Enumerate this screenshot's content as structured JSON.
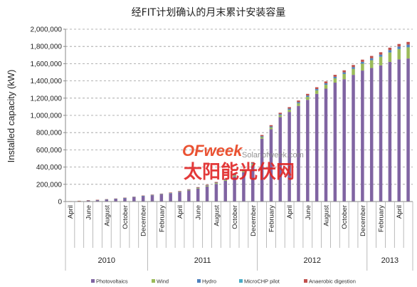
{
  "chart_data": {
    "type": "bar",
    "stacked": true,
    "title": "经FIT计划确认的月末累计安装容量",
    "ylabel": "Installed capacity (kW)",
    "xlabel": "",
    "ylim": [
      0,
      2000000
    ],
    "yticks": [
      0,
      200000,
      400000,
      600000,
      800000,
      1000000,
      1200000,
      1400000,
      1600000,
      1800000,
      2000000
    ],
    "ytick_labels": [
      "0",
      "200,000",
      "400,000",
      "600,000",
      "800,000",
      "1,000,000",
      "1,200,000",
      "1,400,000",
      "1,600,000",
      "1,800,000",
      "2,000,000"
    ],
    "grid": "horizontal-dashed",
    "legend_position": "bottom",
    "categories": [
      "Apr 2010",
      "May 2010",
      "Jun 2010",
      "Jul 2010",
      "Aug 2010",
      "Sep 2010",
      "Oct 2010",
      "Nov 2010",
      "Dec 2010",
      "Jan 2011",
      "Feb 2011",
      "Mar 2011",
      "Apr 2011",
      "May 2011",
      "Jun 2011",
      "Jul 2011",
      "Aug 2011",
      "Sep 2011",
      "Oct 2011",
      "Nov 2011",
      "Dec 2011",
      "Jan 2012",
      "Feb 2012",
      "Mar 2012",
      "Apr 2012",
      "May 2012",
      "Jun 2012",
      "Jul 2012",
      "Aug 2012",
      "Sep 2012",
      "Oct 2012",
      "Nov 2012",
      "Dec 2012",
      "Jan 2013",
      "Feb 2013",
      "Mar 2013",
      "Apr 2013",
      "May 2013"
    ],
    "month_labels": [
      "April",
      "",
      "June",
      "",
      "August",
      "",
      "October",
      "",
      "December",
      "",
      "February",
      "",
      "April",
      "",
      "June",
      "",
      "August",
      "",
      "October",
      "",
      "December",
      "",
      "February",
      "",
      "April",
      "",
      "June",
      "",
      "August",
      "",
      "October",
      "",
      "December",
      "",
      "February",
      "",
      "April",
      ""
    ],
    "years": [
      {
        "label": "2010",
        "start": 0,
        "count": 9
      },
      {
        "label": "2011",
        "start": 9,
        "count": 12
      },
      {
        "label": "2012",
        "start": 21,
        "count": 12
      },
      {
        "label": "2013",
        "start": 33,
        "count": 5
      }
    ],
    "series": [
      {
        "name": "Photovoltaics",
        "color": "#8064a2",
        "values": [
          4000,
          8000,
          13000,
          18000,
          24000,
          31000,
          40000,
          50000,
          62000,
          72000,
          82000,
          94000,
          110000,
          128000,
          150000,
          175000,
          205000,
          240000,
          290000,
          340000,
          420000,
          730000,
          840000,
          980000,
          1040000,
          1110000,
          1180000,
          1250000,
          1310000,
          1380000,
          1420000,
          1470000,
          1520000,
          1550000,
          1580000,
          1620000,
          1650000,
          1660000
        ]
      },
      {
        "name": "Wind",
        "color": "#9bbb59",
        "values": [
          100,
          200,
          500,
          800,
          1200,
          1600,
          2000,
          2500,
          3000,
          3500,
          4000,
          4500,
          5000,
          6000,
          7000,
          8000,
          9000,
          10000,
          12000,
          14000,
          16000,
          18000,
          20000,
          22000,
          25000,
          30000,
          35000,
          40000,
          45000,
          50000,
          60000,
          70000,
          80000,
          90000,
          100000,
          110000,
          120000,
          130000
        ]
      },
      {
        "name": "Hydro",
        "color": "#4f81bd",
        "values": [
          0,
          0,
          100,
          200,
          300,
          400,
          500,
          600,
          800,
          1000,
          1200,
          1500,
          2000,
          2500,
          3000,
          3500,
          4000,
          5000,
          6000,
          7000,
          8000,
          9000,
          10000,
          11000,
          12000,
          13000,
          14000,
          15000,
          16000,
          17000,
          18000,
          19000,
          20000,
          22000,
          24000,
          26000,
          28000,
          30000
        ]
      },
      {
        "name": "MicroCHP pilot",
        "color": "#4bacc6",
        "values": [
          0,
          0,
          0,
          0,
          50,
          50,
          100,
          100,
          100,
          150,
          150,
          200,
          200,
          250,
          250,
          300,
          300,
          300,
          350,
          350,
          400,
          400,
          450,
          450,
          500,
          500,
          550,
          550,
          600,
          600,
          650,
          650,
          700,
          700,
          750,
          750,
          800,
          800
        ]
      },
      {
        "name": "Anaerobic digestion",
        "color": "#c0504d",
        "values": [
          500,
          800,
          1000,
          1200,
          1500,
          2000,
          2500,
          3000,
          3500,
          4000,
          4500,
          5000,
          5500,
          6000,
          7000,
          8000,
          9000,
          10000,
          11000,
          12000,
          13000,
          15000,
          16000,
          17000,
          18000,
          19000,
          20000,
          21000,
          22000,
          23000,
          24000,
          25000,
          26000,
          27000,
          28000,
          29000,
          30000,
          32000
        ]
      }
    ]
  },
  "watermark": {
    "logo_text": "OFweek",
    "url_text": "Solar.ofweek.com",
    "chinese_text": "太阳能光伏网"
  }
}
